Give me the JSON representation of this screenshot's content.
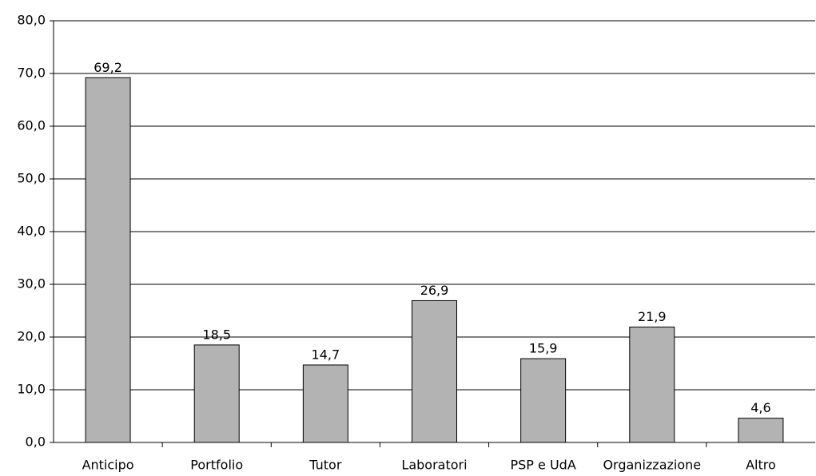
{
  "chart_data": {
    "type": "bar",
    "categories": [
      "Anticipo",
      "Portfolio",
      "Tutor",
      "Laboratori",
      "PSP e UdA",
      "Organizzazione",
      "Altro"
    ],
    "values": [
      69.2,
      18.5,
      14.7,
      26.9,
      15.9,
      21.9,
      4.6
    ],
    "value_labels": [
      "69,2",
      "18,5",
      "14,7",
      "26,9",
      "15,9",
      "21,9",
      "4,6"
    ],
    "color": "#b3b3b3",
    "ylim": [
      0,
      80
    ],
    "yticks": [
      {
        "value": 0,
        "label": "0,0"
      },
      {
        "value": 10,
        "label": "10,0"
      },
      {
        "value": 20,
        "label": "20,0"
      },
      {
        "value": 30,
        "label": "30,0"
      },
      {
        "value": 40,
        "label": "40,0"
      },
      {
        "value": 50,
        "label": "50,0"
      },
      {
        "value": 60,
        "label": "60,0"
      },
      {
        "value": 70,
        "label": "70,0"
      },
      {
        "value": 80,
        "label": "80,0"
      }
    ],
    "grid": true
  }
}
